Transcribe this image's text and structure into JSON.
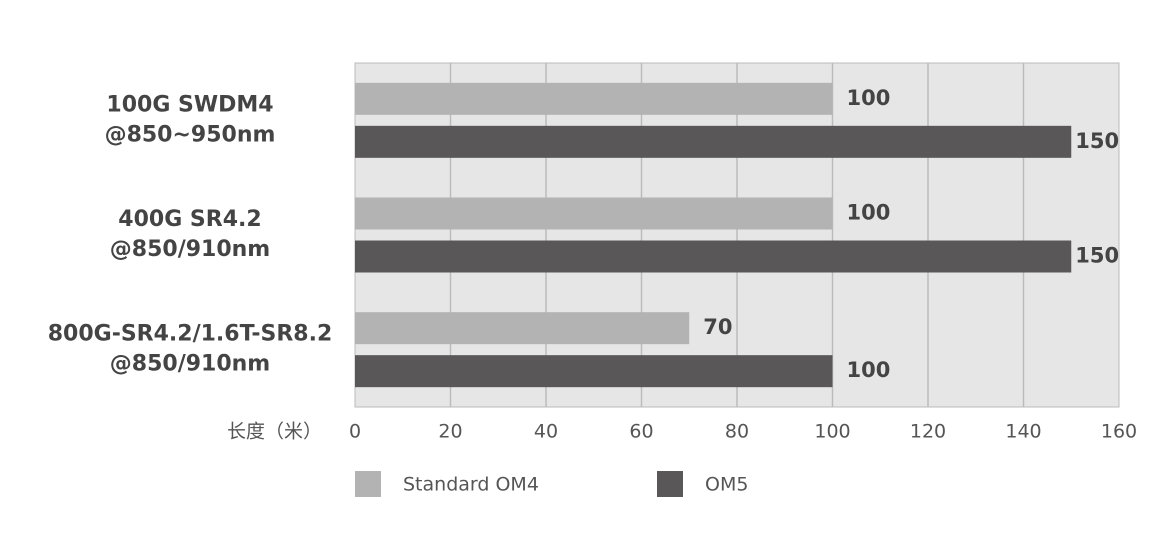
{
  "chart_data": {
    "type": "bar",
    "orientation": "horizontal",
    "categories": [
      [
        "100G SWDM4",
        "@850~950nm"
      ],
      [
        "400G SR4.2",
        "@850/910nm"
      ],
      [
        "800G-SR4.2/1.6T-SR8.2",
        "@850/910nm"
      ]
    ],
    "series": [
      {
        "name": "Standard OM4",
        "color": "#b3b3b3",
        "values": [
          100,
          100,
          70
        ]
      },
      {
        "name": "OM5",
        "color": "#595757",
        "values": [
          150,
          150,
          100
        ]
      }
    ],
    "x_label": "长度（米）",
    "xlim": [
      0,
      160
    ],
    "xticks": [
      0,
      20,
      40,
      60,
      80,
      100,
      120,
      140,
      160
    ],
    "grid": true
  }
}
